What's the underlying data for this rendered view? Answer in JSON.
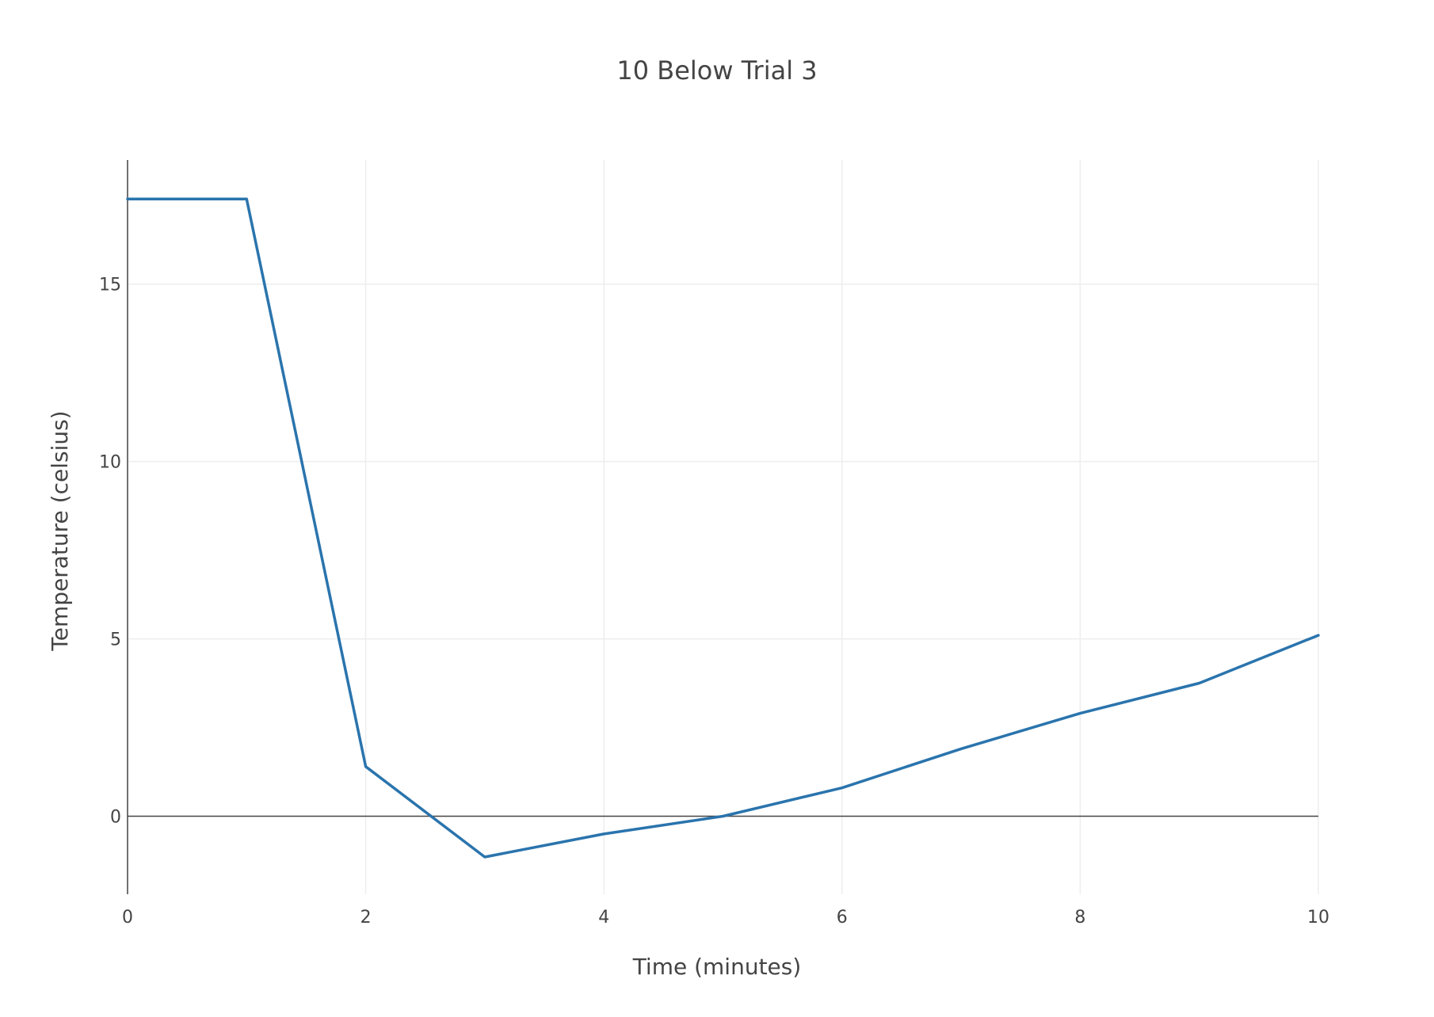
{
  "colors": {
    "series_line": "#2a74ad",
    "grid": "#eeeeee",
    "axis": "#444444",
    "text": "#444444"
  },
  "chart_data": {
    "type": "line",
    "title": "10 Below Trial 3",
    "xlabel": "Time (minutes)",
    "ylabel": "Temperature (celsius)",
    "xlim": [
      0,
      10
    ],
    "ylim": [
      -2.2,
      18.5
    ],
    "xticks": [
      0,
      2,
      4,
      6,
      8,
      10
    ],
    "yticks": [
      0,
      5,
      10,
      15
    ],
    "grid": true,
    "zero_line": true,
    "series": [
      {
        "x": [
          0,
          1,
          2,
          3,
          4,
          5,
          6,
          7,
          8,
          9,
          10
        ],
        "y": [
          17.4,
          17.4,
          1.4,
          -1.15,
          -0.5,
          0.0,
          0.8,
          1.9,
          2.9,
          3.75,
          5.1
        ]
      }
    ]
  }
}
